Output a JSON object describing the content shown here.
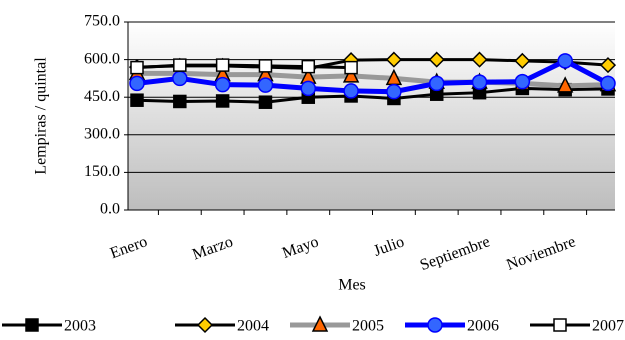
{
  "chart_data": {
    "type": "line",
    "y_label": "Lempiras / quintal",
    "x_label": "Mes",
    "categories": [
      "Enero",
      null,
      "Marzo",
      null,
      "Mayo",
      null,
      "Julio",
      null,
      "Septiembre",
      null,
      "Noviembre",
      null
    ],
    "ylim": [
      0,
      750
    ],
    "yticks": [
      {
        "value": 0,
        "label": "0.0"
      },
      {
        "value": 150,
        "label": "150.0"
      },
      {
        "value": 300,
        "label": "300.0"
      },
      {
        "value": 450,
        "label": "450.0"
      },
      {
        "value": 600,
        "label": "600.0"
      },
      {
        "value": 750,
        "label": "750.0"
      }
    ],
    "grid": true,
    "legend": "bottom",
    "series": [
      {
        "name": "2003",
        "color": "#000000",
        "marker": "square",
        "marker_color": "#000000",
        "values": [
          438,
          433,
          435,
          430,
          450,
          455,
          445,
          462,
          468,
          485,
          480,
          483
        ]
      },
      {
        "name": "2004",
        "color": "#000000",
        "marker": "diamond",
        "marker_color": "#ffcc00",
        "values": [
          570,
          575,
          575,
          570,
          565,
          598,
          600,
          600,
          600,
          595,
          590,
          578
        ]
      },
      {
        "name": "2005",
        "color": "#999999",
        "marker": "triangle",
        "marker_color": "#ff6600",
        "values": [
          545,
          545,
          540,
          540,
          530,
          535,
          525,
          510,
          510,
          505,
          495,
          500
        ]
      },
      {
        "name": "2006",
        "color": "#0000ff",
        "marker": "circle",
        "marker_color": "#3366ff",
        "values": [
          505,
          525,
          500,
          498,
          485,
          475,
          472,
          505,
          510,
          512,
          595,
          505
        ]
      },
      {
        "name": "2007",
        "color": "#000000",
        "marker": "square",
        "marker_color": "#ffffff",
        "values": [
          568,
          578,
          578,
          575,
          572,
          568,
          null,
          null,
          null,
          null,
          null,
          null
        ]
      }
    ]
  }
}
